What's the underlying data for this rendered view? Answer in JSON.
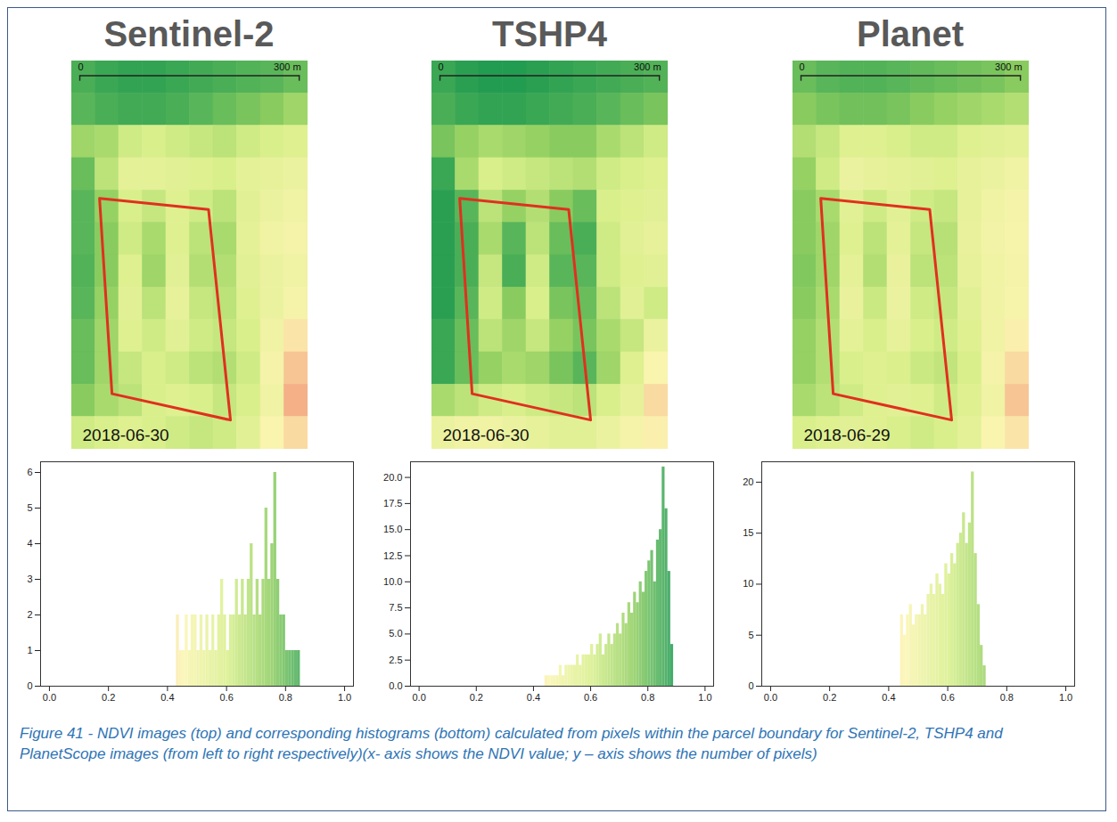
{
  "chart_data": [
    {
      "type": "heatmap",
      "title": "Sentinel-2",
      "annotation": "2018-06-30",
      "xlim": [
        -11,
        312
      ],
      "ylim": [
        0,
        531
      ],
      "xticks": [
        {
          "value": 0,
          "label": "0"
        },
        {
          "value": 300,
          "label": "300 m"
        }
      ],
      "colors": [
        "#f4a582",
        "#fbf4b0",
        "#d9ef8b",
        "#91cf60",
        "#1a9850"
      ],
      "clim": [
        0.3,
        0.9
      ],
      "color": "#e0301e",
      "boundary": {
        "x": [
          27,
          176,
          206,
          44
        ],
        "y": [
          188,
          203,
          491,
          455
        ]
      },
      "cells": [
        [
          0.84,
          0.86,
          0.87,
          0.87,
          0.86,
          0.85,
          0.84,
          0.83,
          0.82,
          0.8
        ],
        [
          0.82,
          0.84,
          0.85,
          0.85,
          0.84,
          0.82,
          0.8,
          0.78,
          0.76,
          0.72
        ],
        [
          0.72,
          0.7,
          0.62,
          0.6,
          0.62,
          0.64,
          0.66,
          0.62,
          0.6,
          0.58
        ],
        [
          0.8,
          0.66,
          0.55,
          0.55,
          0.56,
          0.58,
          0.6,
          0.55,
          0.54,
          0.52
        ],
        [
          0.82,
          0.74,
          0.6,
          0.64,
          0.58,
          0.62,
          0.66,
          0.56,
          0.52,
          0.5
        ],
        [
          0.82,
          0.76,
          0.62,
          0.7,
          0.58,
          0.66,
          0.7,
          0.55,
          0.5,
          0.48
        ],
        [
          0.83,
          0.76,
          0.58,
          0.72,
          0.56,
          0.68,
          0.68,
          0.56,
          0.52,
          0.5
        ],
        [
          0.82,
          0.74,
          0.56,
          0.66,
          0.54,
          0.64,
          0.66,
          0.58,
          0.52,
          0.48
        ],
        [
          0.8,
          0.72,
          0.58,
          0.62,
          0.56,
          0.62,
          0.64,
          0.6,
          0.5,
          0.42
        ],
        [
          0.8,
          0.72,
          0.64,
          0.6,
          0.62,
          0.66,
          0.68,
          0.62,
          0.48,
          0.36
        ],
        [
          0.76,
          0.7,
          0.66,
          0.6,
          0.58,
          0.6,
          0.64,
          0.6,
          0.5,
          0.32
        ],
        [
          0.62,
          0.6,
          0.58,
          0.6,
          0.62,
          0.64,
          0.62,
          0.56,
          0.46,
          0.4
        ]
      ]
    },
    {
      "type": "heatmap",
      "title": "TSHP4",
      "annotation": "2018-06-30",
      "xlim": [
        -11,
        312
      ],
      "ylim": [
        0,
        531
      ],
      "xticks": [
        {
          "value": 0,
          "label": "0"
        },
        {
          "value": 300,
          "label": "300 m"
        }
      ],
      "colors": [
        "#f4a582",
        "#fbf4b0",
        "#d9ef8b",
        "#91cf60",
        "#1a9850"
      ],
      "clim": [
        0.3,
        0.9
      ],
      "color": "#e0301e",
      "boundary": {
        "x": [
          27,
          176,
          206,
          44
        ],
        "y": [
          188,
          203,
          491,
          455
        ]
      },
      "cells": [
        [
          0.86,
          0.88,
          0.89,
          0.89,
          0.88,
          0.87,
          0.86,
          0.85,
          0.84,
          0.83
        ],
        [
          0.84,
          0.86,
          0.87,
          0.87,
          0.86,
          0.85,
          0.84,
          0.82,
          0.8,
          0.78
        ],
        [
          0.78,
          0.74,
          0.7,
          0.72,
          0.74,
          0.76,
          0.76,
          0.7,
          0.66,
          0.62
        ],
        [
          0.86,
          0.7,
          0.6,
          0.62,
          0.64,
          0.66,
          0.68,
          0.62,
          0.6,
          0.58
        ],
        [
          0.88,
          0.82,
          0.66,
          0.74,
          0.68,
          0.76,
          0.8,
          0.6,
          0.58,
          0.56
        ],
        [
          0.88,
          0.84,
          0.7,
          0.82,
          0.66,
          0.8,
          0.84,
          0.62,
          0.56,
          0.54
        ],
        [
          0.88,
          0.84,
          0.64,
          0.84,
          0.62,
          0.82,
          0.82,
          0.62,
          0.58,
          0.56
        ],
        [
          0.88,
          0.82,
          0.62,
          0.76,
          0.6,
          0.78,
          0.8,
          0.66,
          0.56,
          0.62
        ],
        [
          0.86,
          0.8,
          0.66,
          0.72,
          0.64,
          0.74,
          0.78,
          0.7,
          0.64,
          0.52
        ],
        [
          0.86,
          0.8,
          0.74,
          0.7,
          0.72,
          0.78,
          0.82,
          0.72,
          0.58,
          0.46
        ],
        [
          0.7,
          0.66,
          0.62,
          0.6,
          0.62,
          0.64,
          0.66,
          0.6,
          0.54,
          0.4
        ],
        [
          0.52,
          0.5,
          0.5,
          0.52,
          0.54,
          0.56,
          0.56,
          0.52,
          0.48,
          0.44
        ]
      ]
    },
    {
      "type": "heatmap",
      "title": "Planet",
      "annotation": "2018-06-29",
      "xlim": [
        -11,
        312
      ],
      "ylim": [
        0,
        531
      ],
      "xticks": [
        {
          "value": 0,
          "label": "0"
        },
        {
          "value": 300,
          "label": "300 m"
        }
      ],
      "colors": [
        "#f4a582",
        "#fbf4b0",
        "#d9ef8b",
        "#91cf60",
        "#1a9850"
      ],
      "clim": [
        0.3,
        0.9
      ],
      "color": "#e0301e",
      "boundary": {
        "x": [
          27,
          176,
          206,
          44
        ],
        "y": [
          188,
          203,
          491,
          455
        ]
      },
      "cells": [
        [
          0.8,
          0.82,
          0.83,
          0.83,
          0.82,
          0.81,
          0.8,
          0.79,
          0.78,
          0.76
        ],
        [
          0.76,
          0.78,
          0.79,
          0.79,
          0.78,
          0.76,
          0.74,
          0.72,
          0.7,
          0.68
        ],
        [
          0.68,
          0.64,
          0.58,
          0.58,
          0.6,
          0.62,
          0.62,
          0.58,
          0.56,
          0.55
        ],
        [
          0.74,
          0.62,
          0.52,
          0.54,
          0.55,
          0.56,
          0.58,
          0.54,
          0.52,
          0.5
        ],
        [
          0.76,
          0.7,
          0.56,
          0.62,
          0.56,
          0.62,
          0.64,
          0.54,
          0.5,
          0.48
        ],
        [
          0.76,
          0.72,
          0.58,
          0.66,
          0.55,
          0.64,
          0.67,
          0.53,
          0.49,
          0.47
        ],
        [
          0.77,
          0.72,
          0.55,
          0.68,
          0.53,
          0.66,
          0.66,
          0.54,
          0.5,
          0.48
        ],
        [
          0.76,
          0.7,
          0.53,
          0.63,
          0.52,
          0.62,
          0.64,
          0.56,
          0.5,
          0.47
        ],
        [
          0.74,
          0.68,
          0.55,
          0.6,
          0.54,
          0.6,
          0.62,
          0.58,
          0.5,
          0.44
        ],
        [
          0.74,
          0.68,
          0.6,
          0.58,
          0.59,
          0.63,
          0.65,
          0.6,
          0.48,
          0.4
        ],
        [
          0.7,
          0.66,
          0.62,
          0.58,
          0.56,
          0.58,
          0.62,
          0.58,
          0.5,
          0.36
        ],
        [
          0.6,
          0.58,
          0.56,
          0.58,
          0.6,
          0.62,
          0.6,
          0.55,
          0.46,
          0.42
        ]
      ]
    },
    {
      "type": "histogram",
      "xlim": [
        -0.03,
        1.03
      ],
      "ylim": [
        0,
        6.3
      ],
      "xticks": [
        {
          "value": 0,
          "label": "0.0"
        },
        {
          "value": 0.2,
          "label": "0.2"
        },
        {
          "value": 0.4,
          "label": "0.4"
        },
        {
          "value": 0.6,
          "label": "0.6"
        },
        {
          "value": 0.8,
          "label": "0.8"
        },
        {
          "value": 1,
          "label": "1.0"
        }
      ],
      "yticks": [
        0,
        1,
        2,
        3,
        4,
        5,
        6
      ],
      "colors": [
        "#f4a582",
        "#fbf4b0",
        "#d9ef8b",
        "#91cf60",
        "#1a9850"
      ],
      "clim": [
        0.3,
        0.9
      ],
      "bins": [
        0.43,
        0.44,
        0.45,
        0.46,
        0.47,
        0.48,
        0.49,
        0.5,
        0.51,
        0.52,
        0.53,
        0.54,
        0.55,
        0.56,
        0.57,
        0.58,
        0.59,
        0.6,
        0.61,
        0.62,
        0.63,
        0.64,
        0.65,
        0.66,
        0.67,
        0.68,
        0.69,
        0.7,
        0.71,
        0.72,
        0.73,
        0.74,
        0.75,
        0.76,
        0.77,
        0.78,
        0.79,
        0.8,
        0.81,
        0.82,
        0.83,
        0.84,
        0.85
      ],
      "values": [
        2,
        1,
        1,
        2,
        1,
        2,
        2,
        1,
        2,
        1,
        2,
        1,
        2,
        1,
        2,
        3,
        2,
        1,
        2,
        2,
        3,
        2,
        3,
        2,
        3,
        4,
        2,
        3,
        2,
        3,
        5,
        3,
        4,
        6,
        3,
        2,
        2,
        1,
        1,
        1,
        1,
        1
      ]
    },
    {
      "type": "histogram",
      "xlim": [
        -0.03,
        1.03
      ],
      "ylim": [
        0,
        21.5
      ],
      "xticks": [
        {
          "value": 0,
          "label": "0.0"
        },
        {
          "value": 0.2,
          "label": "0.2"
        },
        {
          "value": 0.4,
          "label": "0.4"
        },
        {
          "value": 0.6,
          "label": "0.6"
        },
        {
          "value": 0.8,
          "label": "0.8"
        },
        {
          "value": 1,
          "label": "1.0"
        }
      ],
      "yticks": [
        {
          "value": 0,
          "label": "0.0"
        },
        {
          "value": 2.5,
          "label": "2.5"
        },
        {
          "value": 5,
          "label": "5.0"
        },
        {
          "value": 7.5,
          "label": "7.5"
        },
        {
          "value": 10,
          "label": "10.0"
        },
        {
          "value": 12.5,
          "label": "12.5"
        },
        {
          "value": 15,
          "label": "15.0"
        },
        {
          "value": 17.5,
          "label": "17.5"
        },
        {
          "value": 20,
          "label": "20.0"
        }
      ],
      "colors": [
        "#f4a582",
        "#fbf4b0",
        "#d9ef8b",
        "#91cf60",
        "#1a9850"
      ],
      "clim": [
        0.3,
        0.9
      ],
      "bins": [
        0.44,
        0.45,
        0.46,
        0.47,
        0.48,
        0.49,
        0.5,
        0.51,
        0.52,
        0.53,
        0.54,
        0.55,
        0.56,
        0.57,
        0.58,
        0.59,
        0.6,
        0.61,
        0.62,
        0.63,
        0.64,
        0.65,
        0.66,
        0.67,
        0.68,
        0.69,
        0.7,
        0.71,
        0.72,
        0.73,
        0.74,
        0.75,
        0.76,
        0.77,
        0.78,
        0.79,
        0.8,
        0.81,
        0.82,
        0.83,
        0.84,
        0.85,
        0.86,
        0.87,
        0.88,
        0.89
      ],
      "values": [
        1,
        1,
        1,
        1,
        1,
        2,
        1,
        2,
        2,
        2,
        2,
        3,
        2,
        3,
        3,
        3,
        4,
        3,
        4,
        5,
        3,
        4,
        5,
        4,
        5,
        6,
        5,
        7,
        6,
        8,
        7,
        9,
        8,
        10,
        9,
        11,
        12,
        13,
        10,
        14,
        15,
        21,
        17,
        11,
        4
      ]
    },
    {
      "type": "histogram",
      "xlim": [
        -0.03,
        1.03
      ],
      "ylim": [
        0,
        22
      ],
      "xticks": [
        {
          "value": 0,
          "label": "0.0"
        },
        {
          "value": 0.2,
          "label": "0.2"
        },
        {
          "value": 0.4,
          "label": "0.4"
        },
        {
          "value": 0.6,
          "label": "0.6"
        },
        {
          "value": 0.8,
          "label": "0.8"
        },
        {
          "value": 1,
          "label": "1.0"
        }
      ],
      "yticks": [
        0,
        5,
        10,
        15,
        20
      ],
      "colors": [
        "#f4a582",
        "#fbf4b0",
        "#d9ef8b",
        "#91cf60",
        "#1a9850"
      ],
      "clim": [
        0.3,
        0.9
      ],
      "bins": [
        0.44,
        0.45,
        0.46,
        0.47,
        0.48,
        0.49,
        0.5,
        0.51,
        0.52,
        0.53,
        0.54,
        0.55,
        0.56,
        0.57,
        0.58,
        0.59,
        0.6,
        0.61,
        0.62,
        0.63,
        0.64,
        0.65,
        0.66,
        0.67,
        0.68,
        0.69,
        0.7,
        0.71,
        0.72,
        0.73
      ],
      "values": [
        7,
        5,
        7,
        8,
        6,
        7,
        7,
        8,
        7,
        9,
        10,
        9,
        11,
        10,
        9,
        12,
        11,
        13,
        12,
        14,
        15,
        17,
        14,
        16,
        21,
        13,
        8,
        4,
        2
      ]
    }
  ],
  "caption": "Figure 41 - NDVI images (top) and corresponding histograms (bottom) calculated from pixels within the parcel boundary for Sentinel-2, TSHP4 and PlanetScope images (from left to right respectively)(x- axis shows the NDVI value; y – axis shows the number of pixels)"
}
